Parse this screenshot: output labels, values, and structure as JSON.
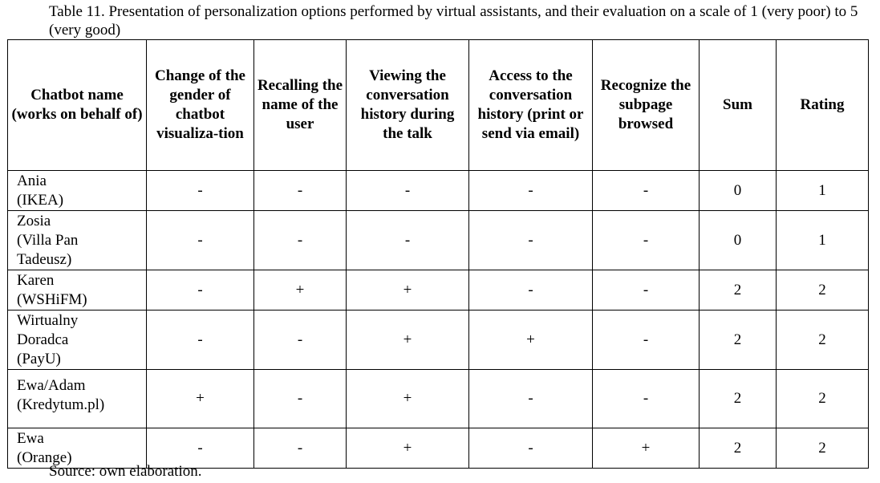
{
  "caption": "Table 11. Presentation of personalization options performed by virtual assistants, and their evaluation on a scale of 1 (very poor) to 5 (very good)",
  "headers": [
    "Chatbot name (works on behalf of)",
    "Change of the gender of chatbot visualiza-tion",
    "Recalling the name of the user",
    "Viewing the conversation history during the talk",
    "Access to the conversation history (print or send via email)",
    "Recognize the subpage browsed",
    "Sum",
    "Rating"
  ],
  "rows": [
    {
      "name_lines": [
        "Ania",
        "(IKEA)"
      ],
      "cells": [
        "-",
        "-",
        "-",
        "-",
        "-",
        "0",
        "1"
      ]
    },
    {
      "name_lines": [
        "Zosia",
        "(Villa Pan",
        "Tadeusz)"
      ],
      "cells": [
        "-",
        "-",
        "-",
        "-",
        "-",
        "0",
        "1"
      ]
    },
    {
      "name_lines": [
        "Karen",
        "(WSHiFM)"
      ],
      "cells": [
        "-",
        "+",
        "+",
        "-",
        "-",
        "2",
        "2"
      ]
    },
    {
      "name_lines": [
        "Wirtualny",
        "Doradca",
        "(PayU)"
      ],
      "cells": [
        "-",
        "-",
        "+",
        "+",
        "-",
        "2",
        "2"
      ]
    },
    {
      "name_lines": [
        "Ewa/Adam",
        "(Kredytum.pl)"
      ],
      "cells": [
        "+",
        "-",
        "+",
        "-",
        "-",
        "2",
        "2"
      ]
    },
    {
      "name_lines": [
        "Ewa",
        "(Orange)"
      ],
      "cells": [
        "-",
        "-",
        "+",
        "-",
        "+",
        "2",
        "2"
      ]
    }
  ],
  "source": "Source: own elaboration."
}
